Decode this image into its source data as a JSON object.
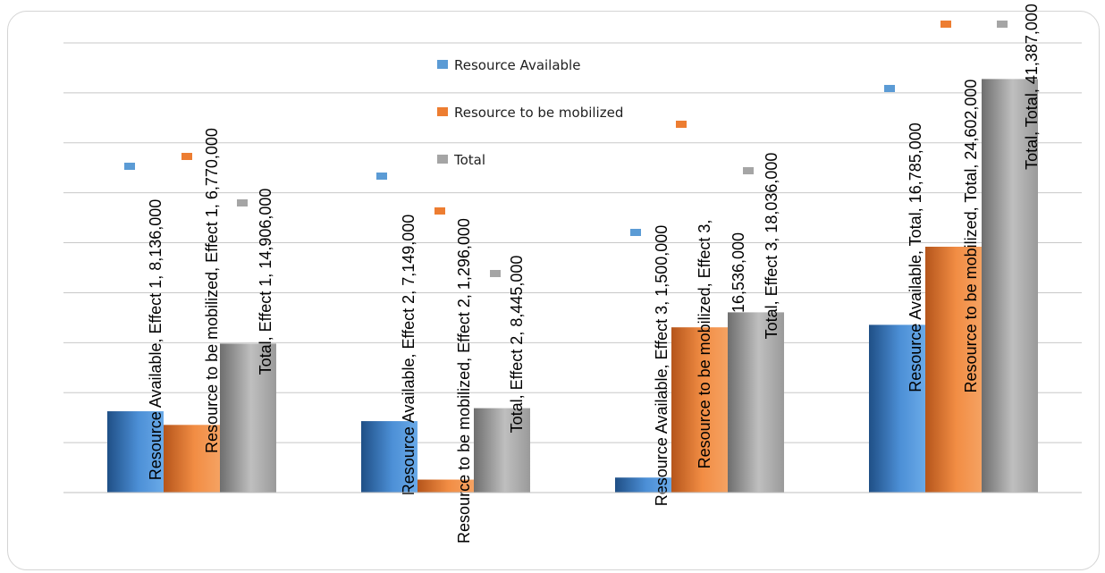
{
  "chart_data": {
    "type": "bar",
    "categories": [
      "Effect 1",
      "Effect 2",
      "Effect 3",
      "Total"
    ],
    "series": [
      {
        "name": "Resource Available",
        "values": [
          8136000,
          7149000,
          1500000,
          16785000
        ],
        "color": "#5b9bd5"
      },
      {
        "name": "Resource to be mobilized",
        "values": [
          6770000,
          1296000,
          16536000,
          24602000
        ],
        "color": "#ed7d31"
      },
      {
        "name": "Total",
        "values": [
          14906000,
          8445000,
          18036000,
          41387000
        ],
        "color": "#a5a5a5"
      }
    ],
    "data_labels": [
      [
        "Resource Available,  Effect 1,  8,136,000",
        "Resource Available,  Effect 2,  7,149,000",
        "Resource Available,  Effect 3,  1,500,000",
        "Resource Available,  Total,  16,785,000"
      ],
      [
        "Resource to be mobilized,  Effect 1,  6,770,000",
        "Resource to be mobilized,  Effect 2,  1,296,000",
        [
          "Resource to be mobilized,  Effect 3,",
          "16,536,000"
        ],
        "Resource to be mobilized,  Total,  24,602,000"
      ],
      [
        "Total, Effect 1, 14,906,000",
        "Total, Effect 2, 8,445,000",
        "Total, Effect 3, 18,036,000",
        "Total, Total, 41,387,000"
      ]
    ],
    "ylim": [
      0,
      45000000
    ],
    "grid": true,
    "legend_position": "top-center",
    "title": "",
    "xlabel": "",
    "ylabel": ""
  }
}
